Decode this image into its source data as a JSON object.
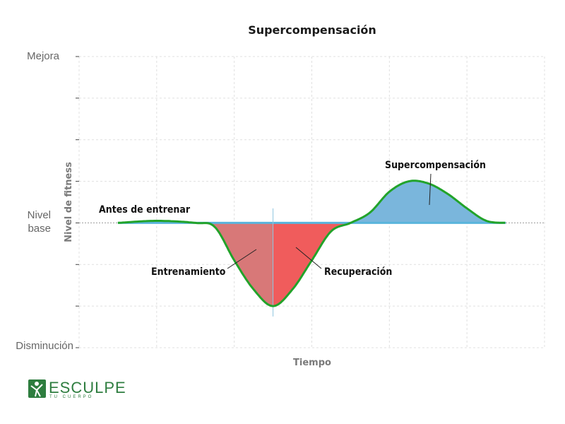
{
  "chart_data": {
    "type": "area",
    "title": "Supercompensación",
    "xlabel": "Tiempo",
    "ylabel": "Nivel de fitness",
    "ylim": [
      -3,
      4
    ],
    "xlim": [
      0,
      12
    ],
    "y_tick_labels": [
      {
        "value": 4,
        "label": "Mejora"
      },
      {
        "value": 0,
        "label": "Nivel\nbase"
      },
      {
        "value": -3,
        "label": "Disminución"
      }
    ],
    "grid": true,
    "curve": {
      "x": [
        1,
        2,
        3,
        3.5,
        4,
        4.5,
        5,
        5.5,
        6,
        6.5,
        7,
        7.5,
        8,
        8.5,
        9,
        9.5,
        10,
        10.5,
        11
      ],
      "y": [
        0,
        0.05,
        0,
        -0.1,
        -0.9,
        -1.6,
        -2,
        -1.6,
        -0.9,
        -0.2,
        0,
        0.25,
        0.75,
        1.0,
        0.95,
        0.7,
        0.35,
        0.05,
        0
      ]
    },
    "regions": [
      {
        "label": "Entrenamiento",
        "x_range": [
          3,
          5
        ],
        "color": "#d87878"
      },
      {
        "label": "Recuperación",
        "x_range": [
          5,
          7
        ],
        "color": "#f05c5c"
      },
      {
        "label": "Supercompensación",
        "x_range": [
          7,
          11
        ],
        "color": "#7ab6dc"
      }
    ],
    "annotations": [
      {
        "text": "Antes de entrenar"
      },
      {
        "text": "Entrenamiento"
      },
      {
        "text": "Recuperación"
      },
      {
        "text": "Supercompensación"
      }
    ],
    "colors": {
      "curve": "#22a32a",
      "baseline": "#5ab4dc",
      "grid": "#e0e0e0"
    }
  },
  "logo": {
    "name": "ESCULPE",
    "tagline": "TU CUERPO",
    "icon": "fitness-figure-icon"
  }
}
